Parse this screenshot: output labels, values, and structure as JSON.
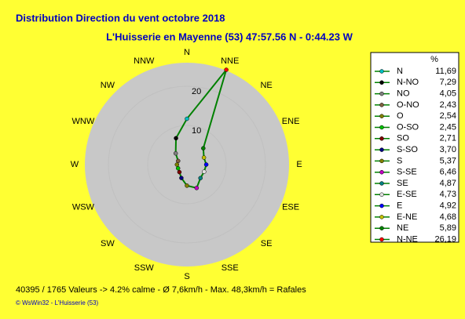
{
  "chart_data": {
    "type": "radar",
    "title": "Distribution Direction du vent   octobre 2018",
    "subtitle": "L'Huisserie en Mayenne (53) 47:57.56 N - 0:44.23 W",
    "categories": [
      "N",
      "NNE",
      "NE",
      "ENE",
      "E",
      "ESE",
      "SE",
      "SSE",
      "S",
      "SSW",
      "SW",
      "WSW",
      "W",
      "WNW",
      "NW",
      "NNW"
    ],
    "legend_names": [
      "N",
      "N-NE",
      "NE",
      "E-NE",
      "E",
      "E-SE",
      "SE",
      "S-SE",
      "S",
      "S-SO",
      "SO",
      "O-SO",
      "O",
      "O-NO",
      "NO",
      "N-NO"
    ],
    "values": [
      11.69,
      26.19,
      5.89,
      4.68,
      4.92,
      4.73,
      4.87,
      6.46,
      5.37,
      3.7,
      2.71,
      2.45,
      2.54,
      2.43,
      4.05,
      7.29
    ],
    "value_labels": [
      "11,69",
      "26,19",
      "5,89",
      "4,68",
      "4,92",
      "4,73",
      "4,87",
      "6,46",
      "5,37",
      "3,70",
      "2,71",
      "2,45",
      "2,54",
      "2,43",
      "4,05",
      "7,29"
    ],
    "point_colors": [
      "#00c0c0",
      "#ff0000",
      "#008000",
      "#c0c000",
      "#0000ff",
      "#e0e0e0",
      "#008080",
      "#c000c0",
      "#808000",
      "#000080",
      "#800000",
      "#00c000",
      "#808000",
      "#806040",
      "#808080",
      "#000000"
    ],
    "line_color": "#008000",
    "legend_unit": "%",
    "rlim": [
      0,
      26
    ],
    "rticks": [
      10,
      20
    ],
    "footer": "40395 / 1765 Valeurs  -> 4.2% calme   -   Ø 7,6km/h   -   Max. 48,3km/h = Rafales",
    "credit": "© WsWin32  -  L'Huisserie (53)"
  }
}
